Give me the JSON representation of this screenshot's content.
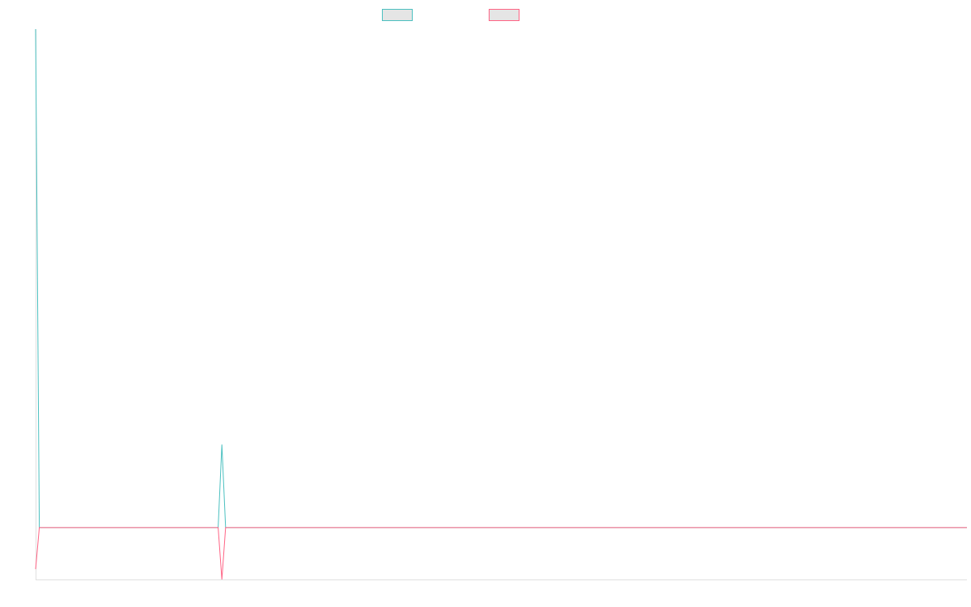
{
  "chart_data": {
    "type": "line",
    "title": "",
    "xlabel": "",
    "ylabel": "",
    "grid": false,
    "legend_placement": "top-center",
    "x": [
      0,
      1,
      2,
      3,
      4,
      5,
      6,
      7,
      8,
      9,
      10,
      11,
      12,
      13,
      14,
      15,
      16,
      17,
      18,
      19,
      20,
      21,
      22,
      23,
      24,
      25,
      26,
      27,
      28,
      29,
      30,
      31,
      32,
      33,
      34,
      35,
      36,
      37,
      38,
      39,
      40,
      41,
      42,
      43,
      44,
      45,
      46,
      47,
      48,
      49,
      50,
      51,
      52,
      53,
      54,
      55,
      56,
      57,
      58,
      59,
      60,
      61,
      62,
      63,
      64,
      65,
      66,
      67,
      68,
      69,
      70,
      71,
      72,
      73,
      74,
      75,
      76,
      77,
      78,
      79,
      80,
      81,
      82,
      83,
      84,
      85,
      86,
      87,
      88,
      89,
      90,
      91,
      92,
      93,
      94,
      95,
      96,
      97,
      98,
      99,
      100,
      101,
      102,
      103,
      104,
      105,
      106,
      107,
      108,
      109,
      110,
      111,
      112,
      113,
      114,
      115,
      116,
      117,
      118,
      119,
      120,
      121,
      122,
      123,
      124,
      125,
      126,
      127,
      128,
      129,
      130,
      131,
      132,
      133,
      134,
      135,
      136,
      137,
      138,
      139,
      140,
      141,
      142,
      143,
      144,
      145,
      146,
      147,
      148,
      149,
      150,
      151,
      152,
      153,
      154,
      155,
      156,
      157,
      158,
      159,
      160,
      161,
      162,
      163,
      164,
      165,
      166,
      167,
      168,
      169,
      170,
      171,
      172,
      173,
      174,
      175,
      176,
      177,
      178,
      179,
      180,
      181,
      182,
      183,
      184,
      185,
      186,
      187,
      188,
      189,
      190,
      191,
      192,
      193,
      194,
      195,
      196,
      197,
      198,
      199,
      200,
      201,
      202,
      203,
      204,
      205,
      206,
      207,
      208,
      209,
      210,
      211,
      212,
      213,
      214,
      215,
      216,
      217,
      218,
      219,
      220,
      221,
      222,
      223,
      224,
      225,
      226,
      227,
      228,
      229,
      230,
      231,
      232,
      233,
      234,
      235,
      236,
      237,
      238,
      239,
      240,
      241,
      242,
      243,
      244,
      245,
      246,
      247,
      248,
      249,
      250
    ],
    "series": [
      {
        "name": "",
        "color": "#4bc0c0",
        "values": [
          12,
          0,
          0,
          0,
          0,
          0,
          0,
          0,
          0,
          0,
          0,
          0,
          0,
          0,
          0,
          0,
          0,
          0,
          0,
          0,
          0,
          0,
          0,
          0,
          0,
          0,
          0,
          0,
          0,
          0,
          0,
          0,
          0,
          0,
          0,
          0,
          0,
          0,
          0,
          0,
          0,
          0,
          0,
          0,
          0,
          0,
          0,
          0,
          0,
          0,
          2,
          0,
          0,
          0,
          0,
          0,
          0,
          0,
          0,
          0,
          0,
          0,
          0,
          0,
          0,
          0,
          0,
          0,
          0,
          0,
          0,
          0,
          0,
          0,
          0,
          0,
          0,
          0,
          0,
          0,
          0,
          0,
          0,
          0,
          0,
          0,
          0,
          0,
          0,
          0,
          0,
          0,
          0,
          0,
          0,
          0,
          0,
          0,
          0,
          0,
          0,
          0,
          0,
          0,
          0,
          0,
          0,
          0,
          0,
          0,
          0,
          0,
          0,
          0,
          0,
          0,
          0,
          0,
          0,
          0,
          0,
          0,
          0,
          0,
          0,
          0,
          0,
          0,
          0,
          0,
          0,
          0,
          0,
          0,
          0,
          0,
          0,
          0,
          0,
          0,
          0,
          0,
          0,
          0,
          0,
          0,
          0,
          0,
          0,
          0,
          0,
          0,
          0,
          0,
          0,
          0,
          0,
          0,
          0,
          0,
          0,
          0,
          0,
          0,
          0,
          0,
          0,
          0,
          0,
          0,
          0,
          0,
          0,
          0,
          0,
          0,
          0,
          0,
          0,
          0,
          0,
          0,
          0,
          0,
          0,
          0,
          0,
          0,
          0,
          0,
          0,
          0,
          0,
          0,
          0,
          0,
          0,
          0,
          0,
          0,
          0,
          0,
          0,
          0,
          0,
          0,
          0,
          0,
          0,
          0,
          0,
          0,
          0,
          0,
          0,
          0,
          0,
          0,
          0,
          0,
          0,
          0,
          0,
          0,
          0,
          0,
          0,
          0,
          0,
          0,
          0,
          0,
          0,
          0,
          0,
          0,
          0,
          0,
          0,
          0,
          0,
          0,
          0,
          0,
          0,
          0,
          0,
          0,
          0,
          0,
          0
        ]
      },
      {
        "name": "",
        "color": "#ff6384",
        "values": [
          -1,
          0,
          0,
          0,
          0,
          0,
          0,
          0,
          0,
          0,
          0,
          0,
          0,
          0,
          0,
          0,
          0,
          0,
          0,
          0,
          0,
          0,
          0,
          0,
          0,
          0,
          0,
          0,
          0,
          0,
          0,
          0,
          0,
          0,
          0,
          0,
          0,
          0,
          0,
          0,
          0,
          0,
          0,
          0,
          0,
          0,
          0,
          0,
          0,
          0,
          -1.25,
          0,
          0,
          0,
          0,
          0,
          0,
          0,
          0,
          0,
          0,
          0,
          0,
          0,
          0,
          0,
          0,
          0,
          0,
          0,
          0,
          0,
          0,
          0,
          0,
          0,
          0,
          0,
          0,
          0,
          0,
          0,
          0,
          0,
          0,
          0,
          0,
          0,
          0,
          0,
          0,
          0,
          0,
          0,
          0,
          0,
          0,
          0,
          0,
          0,
          0,
          0,
          0,
          0,
          0,
          0,
          0,
          0,
          0,
          0,
          0,
          0,
          0,
          0,
          0,
          0,
          0,
          0,
          0,
          0,
          0,
          0,
          0,
          0,
          0,
          0,
          0,
          0,
          0,
          0,
          0,
          0,
          0,
          0,
          0,
          0,
          0,
          0,
          0,
          0,
          0,
          0,
          0,
          0,
          0,
          0,
          0,
          0,
          0,
          0,
          0,
          0,
          0,
          0,
          0,
          0,
          0,
          0,
          0,
          0,
          0,
          0,
          0,
          0,
          0,
          0,
          0,
          0,
          0,
          0,
          0,
          0,
          0,
          0,
          0,
          0,
          0,
          0,
          0,
          0,
          0,
          0,
          0,
          0,
          0,
          0,
          0,
          0,
          0,
          0,
          0,
          0,
          0,
          0,
          0,
          0,
          0,
          0,
          0,
          0,
          0,
          0,
          0,
          0,
          0,
          0,
          0,
          0,
          0,
          0,
          0,
          0,
          0,
          0,
          0,
          0,
          0,
          0,
          0,
          0,
          0,
          0,
          0,
          0,
          0,
          0,
          0,
          0,
          0,
          0,
          0,
          0,
          0,
          0,
          0,
          0,
          0,
          0,
          0,
          0,
          0,
          0,
          0,
          0,
          0,
          0,
          0,
          0,
          0,
          0,
          0
        ]
      }
    ],
    "ylim": [
      -1.25,
      12
    ],
    "xlim": [
      0,
      250
    ]
  },
  "legend": {
    "items": [
      {
        "label": "",
        "border_color": "#4bc0c0",
        "fill_color": "#e5e5e5"
      },
      {
        "label": "",
        "border_color": "#ff6384",
        "fill_color": "#e5e5e5"
      }
    ]
  },
  "colors": {
    "axis": "#e0e0e0",
    "background": "#ffffff"
  }
}
